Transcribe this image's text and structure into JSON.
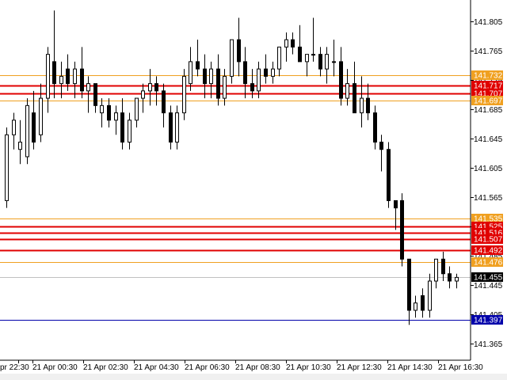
{
  "chart_data": {
    "type": "candlestick",
    "symbol": "",
    "ylim": [
      141.345,
      141.83
    ],
    "grid": false,
    "price_ticks": [
      "141.805",
      "141.765",
      "141.725",
      "141.685",
      "141.645",
      "141.605",
      "141.565",
      "141.525",
      "141.485",
      "141.445",
      "141.405",
      "141.365"
    ],
    "time_labels": [
      "21 Apr 00:30",
      "21 Apr 02:30",
      "21 Apr 04:30",
      "21 Apr 06:30",
      "21 Apr 08:30",
      "21 Apr 10:30",
      "21 Apr 12:30",
      "21 Apr 14:30",
      "21 Apr 16:30"
    ],
    "first_time_label_partial": "pr 22:30",
    "levels": [
      {
        "label": "141.732",
        "price": 141.732,
        "color": "#f0a020",
        "kind": "thin"
      },
      {
        "label": "141.717",
        "price": 141.717,
        "color": "#e00000",
        "kind": "thick"
      },
      {
        "label": "141.707",
        "price": 141.707,
        "color": "#e00000",
        "kind": "thick"
      },
      {
        "label": "141.697",
        "price": 141.697,
        "color": "#f0a020",
        "kind": "thin"
      },
      {
        "label": "141.535",
        "price": 141.535,
        "color": "#f0a020",
        "kind": "thin"
      },
      {
        "label": "141.525",
        "price": 141.525,
        "color": "#e00000",
        "kind": "thick"
      },
      {
        "label": "141.516",
        "price": 141.516,
        "color": "#e00000",
        "kind": "thick"
      },
      {
        "label": "141.507",
        "price": 141.507,
        "color": "#e00000",
        "kind": "thick"
      },
      {
        "label": "141.492",
        "price": 141.492,
        "color": "#e00000",
        "kind": "thick"
      },
      {
        "label": "141.476",
        "price": 141.476,
        "color": "#f0a020",
        "kind": "thin"
      },
      {
        "label": "141.397",
        "price": 141.397,
        "color": "#0000aa",
        "kind": "thin"
      }
    ],
    "current_price": {
      "label": "141.455",
      "price": 141.455
    },
    "candles": [
      {
        "o": 141.56,
        "h": 141.66,
        "l": 141.55,
        "c": 141.65
      },
      {
        "o": 141.65,
        "h": 141.68,
        "l": 141.63,
        "c": 141.67
      },
      {
        "o": 141.63,
        "h": 141.67,
        "l": 141.61,
        "c": 141.64
      },
      {
        "o": 141.62,
        "h": 141.7,
        "l": 141.61,
        "c": 141.69
      },
      {
        "o": 141.68,
        "h": 141.71,
        "l": 141.63,
        "c": 141.64
      },
      {
        "o": 141.65,
        "h": 141.72,
        "l": 141.64,
        "c": 141.7
      },
      {
        "o": 141.7,
        "h": 141.77,
        "l": 141.68,
        "c": 141.76
      },
      {
        "o": 141.75,
        "h": 141.82,
        "l": 141.7,
        "c": 141.72
      },
      {
        "o": 141.72,
        "h": 141.75,
        "l": 141.7,
        "c": 141.73
      },
      {
        "o": 141.74,
        "h": 141.76,
        "l": 141.71,
        "c": 141.72
      },
      {
        "o": 141.72,
        "h": 141.75,
        "l": 141.7,
        "c": 141.74
      },
      {
        "o": 141.74,
        "h": 141.77,
        "l": 141.7,
        "c": 141.71
      },
      {
        "o": 141.71,
        "h": 141.73,
        "l": 141.68,
        "c": 141.72
      },
      {
        "o": 141.72,
        "h": 141.72,
        "l": 141.68,
        "c": 141.69
      },
      {
        "o": 141.68,
        "h": 141.7,
        "l": 141.66,
        "c": 141.69
      },
      {
        "o": 141.69,
        "h": 141.7,
        "l": 141.66,
        "c": 141.67
      },
      {
        "o": 141.67,
        "h": 141.69,
        "l": 141.65,
        "c": 141.68
      },
      {
        "o": 141.68,
        "h": 141.7,
        "l": 141.63,
        "c": 141.64
      },
      {
        "o": 141.64,
        "h": 141.68,
        "l": 141.63,
        "c": 141.67
      },
      {
        "o": 141.67,
        "h": 141.7,
        "l": 141.66,
        "c": 141.7
      },
      {
        "o": 141.7,
        "h": 141.72,
        "l": 141.68,
        "c": 141.71
      },
      {
        "o": 141.71,
        "h": 141.74,
        "l": 141.69,
        "c": 141.72
      },
      {
        "o": 141.72,
        "h": 141.73,
        "l": 141.69,
        "c": 141.71
      },
      {
        "o": 141.71,
        "h": 141.72,
        "l": 141.66,
        "c": 141.68
      },
      {
        "o": 141.68,
        "h": 141.69,
        "l": 141.63,
        "c": 141.64
      },
      {
        "o": 141.64,
        "h": 141.69,
        "l": 141.63,
        "c": 141.68
      },
      {
        "o": 141.68,
        "h": 141.74,
        "l": 141.67,
        "c": 141.73
      },
      {
        "o": 141.72,
        "h": 141.77,
        "l": 141.71,
        "c": 141.75
      },
      {
        "o": 141.75,
        "h": 141.78,
        "l": 141.73,
        "c": 141.74
      },
      {
        "o": 141.74,
        "h": 141.76,
        "l": 141.7,
        "c": 141.72
      },
      {
        "o": 141.72,
        "h": 141.75,
        "l": 141.7,
        "c": 141.74
      },
      {
        "o": 141.74,
        "h": 141.76,
        "l": 141.69,
        "c": 141.7
      },
      {
        "o": 141.7,
        "h": 141.74,
        "l": 141.69,
        "c": 141.73
      },
      {
        "o": 141.73,
        "h": 141.78,
        "l": 141.72,
        "c": 141.78
      },
      {
        "o": 141.78,
        "h": 141.81,
        "l": 141.73,
        "c": 141.75
      },
      {
        "o": 141.75,
        "h": 141.77,
        "l": 141.7,
        "c": 141.72
      },
      {
        "o": 141.72,
        "h": 141.74,
        "l": 141.7,
        "c": 141.71
      },
      {
        "o": 141.71,
        "h": 141.75,
        "l": 141.7,
        "c": 141.74
      },
      {
        "o": 141.74,
        "h": 141.76,
        "l": 141.72,
        "c": 141.73
      },
      {
        "o": 141.73,
        "h": 141.75,
        "l": 141.72,
        "c": 141.74
      },
      {
        "o": 141.74,
        "h": 141.77,
        "l": 141.73,
        "c": 141.77
      },
      {
        "o": 141.77,
        "h": 141.79,
        "l": 141.75,
        "c": 141.78
      },
      {
        "o": 141.78,
        "h": 141.79,
        "l": 141.76,
        "c": 141.77
      },
      {
        "o": 141.77,
        "h": 141.8,
        "l": 141.75,
        "c": 141.75
      },
      {
        "o": 141.75,
        "h": 141.76,
        "l": 141.73,
        "c": 141.76
      },
      {
        "o": 141.76,
        "h": 141.81,
        "l": 141.75,
        "c": 141.76
      },
      {
        "o": 141.76,
        "h": 141.77,
        "l": 141.73,
        "c": 141.74
      },
      {
        "o": 141.74,
        "h": 141.77,
        "l": 141.72,
        "c": 141.76
      },
      {
        "o": 141.75,
        "h": 141.78,
        "l": 141.73,
        "c": 141.75
      },
      {
        "o": 141.75,
        "h": 141.77,
        "l": 141.69,
        "c": 141.7
      },
      {
        "o": 141.7,
        "h": 141.74,
        "l": 141.69,
        "c": 141.72
      },
      {
        "o": 141.72,
        "h": 141.75,
        "l": 141.68,
        "c": 141.68
      },
      {
        "o": 141.68,
        "h": 141.73,
        "l": 141.66,
        "c": 141.7
      },
      {
        "o": 141.7,
        "h": 141.72,
        "l": 141.67,
        "c": 141.68
      },
      {
        "o": 141.68,
        "h": 141.69,
        "l": 141.63,
        "c": 141.64
      },
      {
        "o": 141.64,
        "h": 141.65,
        "l": 141.6,
        "c": 141.63
      },
      {
        "o": 141.63,
        "h": 141.64,
        "l": 141.55,
        "c": 141.56
      },
      {
        "o": 141.56,
        "h": 141.56,
        "l": 141.52,
        "c": 141.55
      },
      {
        "o": 141.56,
        "h": 141.57,
        "l": 141.47,
        "c": 141.48
      },
      {
        "o": 141.48,
        "h": 141.48,
        "l": 141.39,
        "c": 141.41
      },
      {
        "o": 141.41,
        "h": 141.43,
        "l": 141.4,
        "c": 141.42
      },
      {
        "o": 141.43,
        "h": 141.44,
        "l": 141.4,
        "c": 141.41
      },
      {
        "o": 141.41,
        "h": 141.46,
        "l": 141.4,
        "c": 141.45
      },
      {
        "o": 141.45,
        "h": 141.48,
        "l": 141.44,
        "c": 141.48
      },
      {
        "o": 141.48,
        "h": 141.49,
        "l": 141.45,
        "c": 141.46
      },
      {
        "o": 141.46,
        "h": 141.47,
        "l": 141.44,
        "c": 141.45
      },
      {
        "o": 141.45,
        "h": 141.46,
        "l": 141.44,
        "c": 141.455
      }
    ]
  }
}
